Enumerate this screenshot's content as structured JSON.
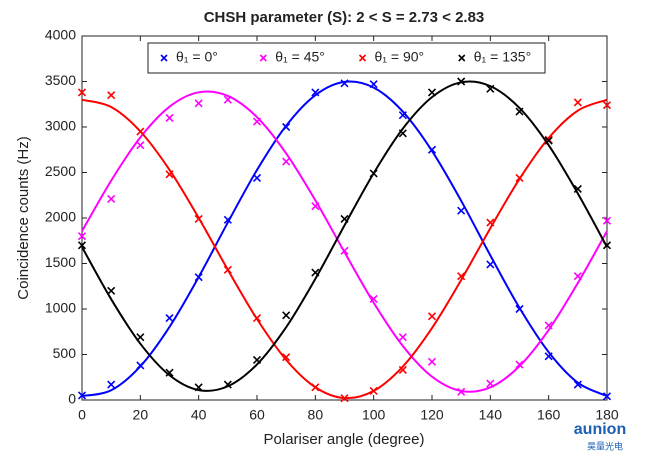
{
  "chart_data": {
    "type": "scatter",
    "title": "CHSH parameter (S): 2 < S = 2.73 < 2.83",
    "xlabel": "Polariser angle (degree)",
    "ylabel": "Coincidence counts (Hz)",
    "x": [
      0,
      10,
      20,
      30,
      40,
      50,
      60,
      70,
      80,
      90,
      100,
      110,
      120,
      130,
      140,
      150,
      160,
      170,
      180
    ],
    "series": [
      {
        "name": "θ₁ = 0°",
        "color": "#0000ff",
        "values": [
          50,
          170,
          380,
          900,
          1350,
          1980,
          2440,
          3000,
          3380,
          3480,
          3470,
          3130,
          2750,
          2080,
          1490,
          1000,
          480,
          170,
          40
        ],
        "fit": [
          44,
          107,
          370,
          803,
          1351,
          1951,
          2528,
          3014,
          3350,
          3496,
          3433,
          3170,
          2737,
          2189,
          1589,
          1012,
          526,
          190,
          44
        ]
      },
      {
        "name": "θ₁ = 45°",
        "color": "#ff00ff",
        "values": [
          1800,
          2210,
          2800,
          3100,
          3260,
          3300,
          3060,
          2620,
          2130,
          1640,
          1110,
          690,
          420,
          90,
          180,
          390,
          820,
          1360,
          1970
        ],
        "fit": [
          1855,
          2411,
          2886,
          3223,
          3381,
          3341,
          3108,
          2710,
          2195,
          1625,
          1069,
          594,
          257,
          99,
          139,
          372,
          770,
          1285,
          1855
        ]
      },
      {
        "name": "θ₁ = 90°",
        "color": "#ff0000",
        "values": [
          3380,
          3350,
          2950,
          2480,
          1990,
          1430,
          900,
          470,
          140,
          20,
          100,
          330,
          920,
          1360,
          1950,
          2440,
          2860,
          3270,
          3240
        ],
        "fit": [
          3299,
          3220,
          2952,
          2529,
          2001,
          1432,
          890,
          441,
          140,
          21,
          100,
          368,
          791,
          1319,
          1888,
          2429,
          2879,
          3180,
          3299
        ]
      },
      {
        "name": "θ₁ = 135°",
        "color": "#000000",
        "values": [
          1700,
          1200,
          690,
          300,
          140,
          170,
          440,
          930,
          1400,
          1990,
          2490,
          2930,
          3380,
          3500,
          3420,
          3170,
          2850,
          2320,
          1700
        ],
        "fit": [
          1681,
          1108,
          619,
          272,
          109,
          151,
          391,
          800,
          1331,
          1919,
          2492,
          2982,
          3328,
          3491,
          3449,
          3209,
          2800,
          2269,
          1681
        ]
      }
    ],
    "xlim": [
      0,
      180
    ],
    "xticks": [
      0,
      20,
      40,
      60,
      80,
      100,
      120,
      140,
      160,
      180
    ],
    "ylim": [
      0,
      4000
    ],
    "yticks": [
      0,
      500,
      1000,
      1500,
      2000,
      2500,
      3000,
      3500,
      4000
    ],
    "grid": false,
    "legend": "top"
  },
  "watermark": {
    "brand": "aunion",
    "sub": "昊量光电"
  }
}
